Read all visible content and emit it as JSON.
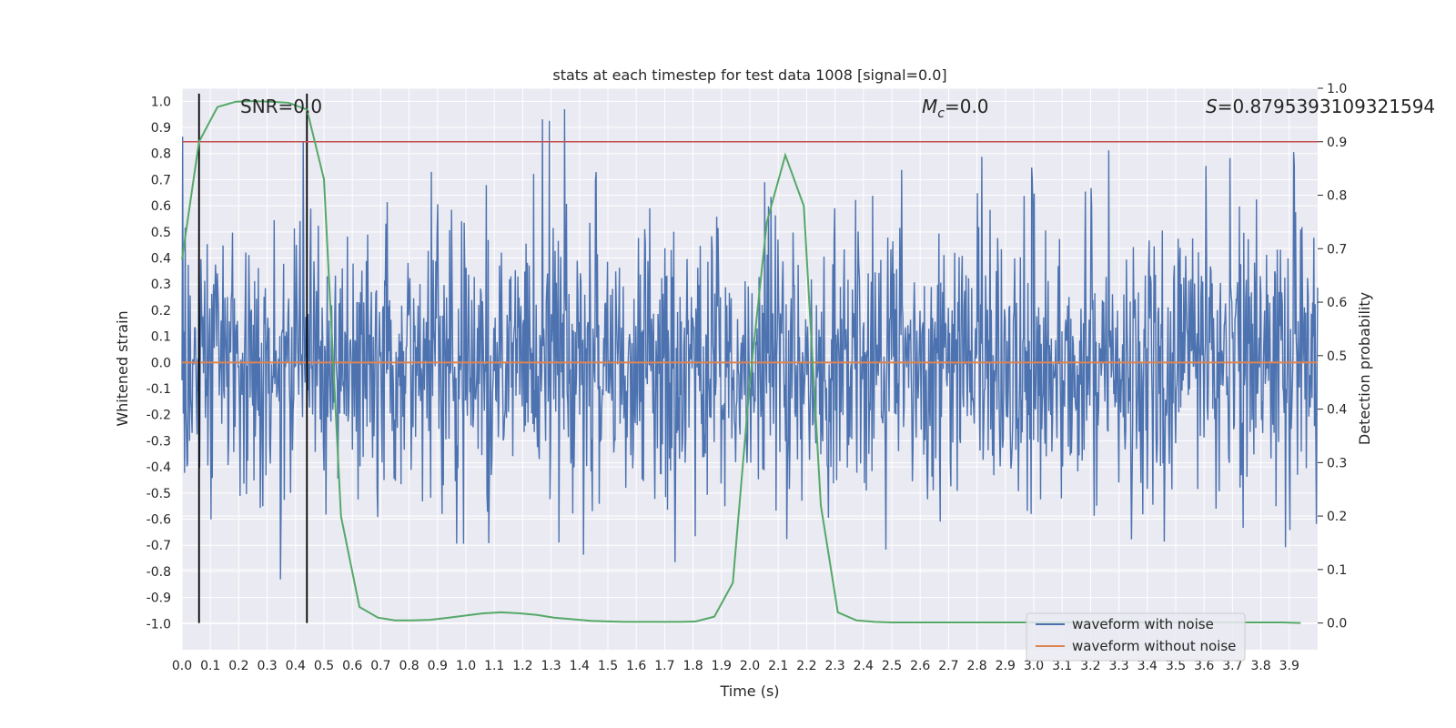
{
  "chart_data": {
    "type": "line",
    "title": "stats at each timestep for test data 1008 [signal=0.0]",
    "xlabel": "Time (s)",
    "ylabel": "Whitened strain",
    "y2label": "Detection probability",
    "xlim": [
      0.0,
      4.0
    ],
    "ylim": [
      -1.1,
      1.05
    ],
    "y2lim": [
      -0.05,
      1.0
    ],
    "xticks": [
      "0.0",
      "0.1",
      "0.2",
      "0.3",
      "0.4",
      "0.5",
      "0.6",
      "0.7",
      "0.8",
      "0.9",
      "1.0",
      "1.1",
      "1.2",
      "1.3",
      "1.4",
      "1.5",
      "1.6",
      "1.7",
      "1.8",
      "1.9",
      "2.0",
      "2.1",
      "2.2",
      "2.3",
      "2.4",
      "2.5",
      "2.6",
      "2.7",
      "2.8",
      "2.9",
      "3.0",
      "3.1",
      "3.2",
      "3.3",
      "3.4",
      "3.5",
      "3.6",
      "3.7",
      "3.8",
      "3.9"
    ],
    "yticks": [
      "1.0",
      "0.9",
      "0.8",
      "0.7",
      "0.6",
      "0.5",
      "0.4",
      "0.3",
      "0.2",
      "0.1",
      "0.0",
      "-0.1",
      "-0.2",
      "-0.3",
      "-0.4",
      "-0.5",
      "-0.6",
      "-0.7",
      "-0.8",
      "-0.9",
      "-1.0"
    ],
    "y2ticks": [
      "1.0",
      "0.9",
      "0.8",
      "0.7",
      "0.6",
      "0.5",
      "0.4",
      "0.3",
      "0.2",
      "0.1",
      "0.0"
    ],
    "annotations": {
      "snr": "SNR=0.0",
      "mc_symbol": "M",
      "mc_sub": "c",
      "mc_value": "=0.0",
      "s_symbol": "S",
      "s_value": "=0.8795393109321594"
    },
    "threshold_probability": 0.9,
    "vertical_markers": [
      0.06,
      0.44
    ],
    "series": [
      {
        "name": "waveform with noise",
        "color": "#4c72b0",
        "axis": "left",
        "samples": 1800,
        "typical_amplitude": 0.27,
        "peak_amplitude": 0.97
      },
      {
        "name": "waveform without noise",
        "color": "#dd8452",
        "axis": "left",
        "values": [
          0.0
        ]
      },
      {
        "name": "detection probability",
        "color": "#55a868",
        "axis": "right",
        "x": [
          0.0,
          0.06,
          0.125,
          0.19,
          0.25,
          0.31,
          0.375,
          0.44,
          0.5,
          0.56,
          0.625,
          0.69,
          0.75,
          0.81,
          0.875,
          0.94,
          1.0,
          1.06,
          1.125,
          1.19,
          1.25,
          1.31,
          1.375,
          1.44,
          1.5,
          1.56,
          1.625,
          1.69,
          1.75,
          1.81,
          1.875,
          1.94,
          2.0,
          2.06,
          2.125,
          2.19,
          2.25,
          2.31,
          2.375,
          2.44,
          2.5,
          2.56,
          2.625,
          2.69,
          2.75,
          2.81,
          2.875,
          2.94,
          3.0,
          3.06,
          3.125,
          3.19,
          3.25,
          3.31,
          3.375,
          3.44,
          3.5,
          3.56,
          3.625,
          3.69,
          3.75,
          3.81,
          3.875,
          3.94
        ],
        "values": [
          0.68,
          0.9,
          0.965,
          0.975,
          0.976,
          0.975,
          0.973,
          0.96,
          0.83,
          0.2,
          0.03,
          0.01,
          0.005,
          0.005,
          0.006,
          0.01,
          0.014,
          0.018,
          0.02,
          0.018,
          0.015,
          0.01,
          0.007,
          0.004,
          0.003,
          0.002,
          0.002,
          0.002,
          0.002,
          0.003,
          0.012,
          0.075,
          0.45,
          0.75,
          0.875,
          0.78,
          0.22,
          0.02,
          0.005,
          0.002,
          0.001,
          0.001,
          0.001,
          0.001,
          0.001,
          0.001,
          0.001,
          0.001,
          0.001,
          0.001,
          0.001,
          0.001,
          0.001,
          0.001,
          0.001,
          0.001,
          0.001,
          0.001,
          0.001,
          0.001,
          0.001,
          0.001,
          0.001,
          0.0
        ]
      }
    ],
    "legend": {
      "position": "bottom-right",
      "entries": [
        "waveform with noise",
        "waveform without noise"
      ]
    },
    "grid": true,
    "colors": {
      "background": "#eaeaf2",
      "grid": "#ffffff",
      "threshold": "#c44e52",
      "marker": "#000000"
    }
  }
}
